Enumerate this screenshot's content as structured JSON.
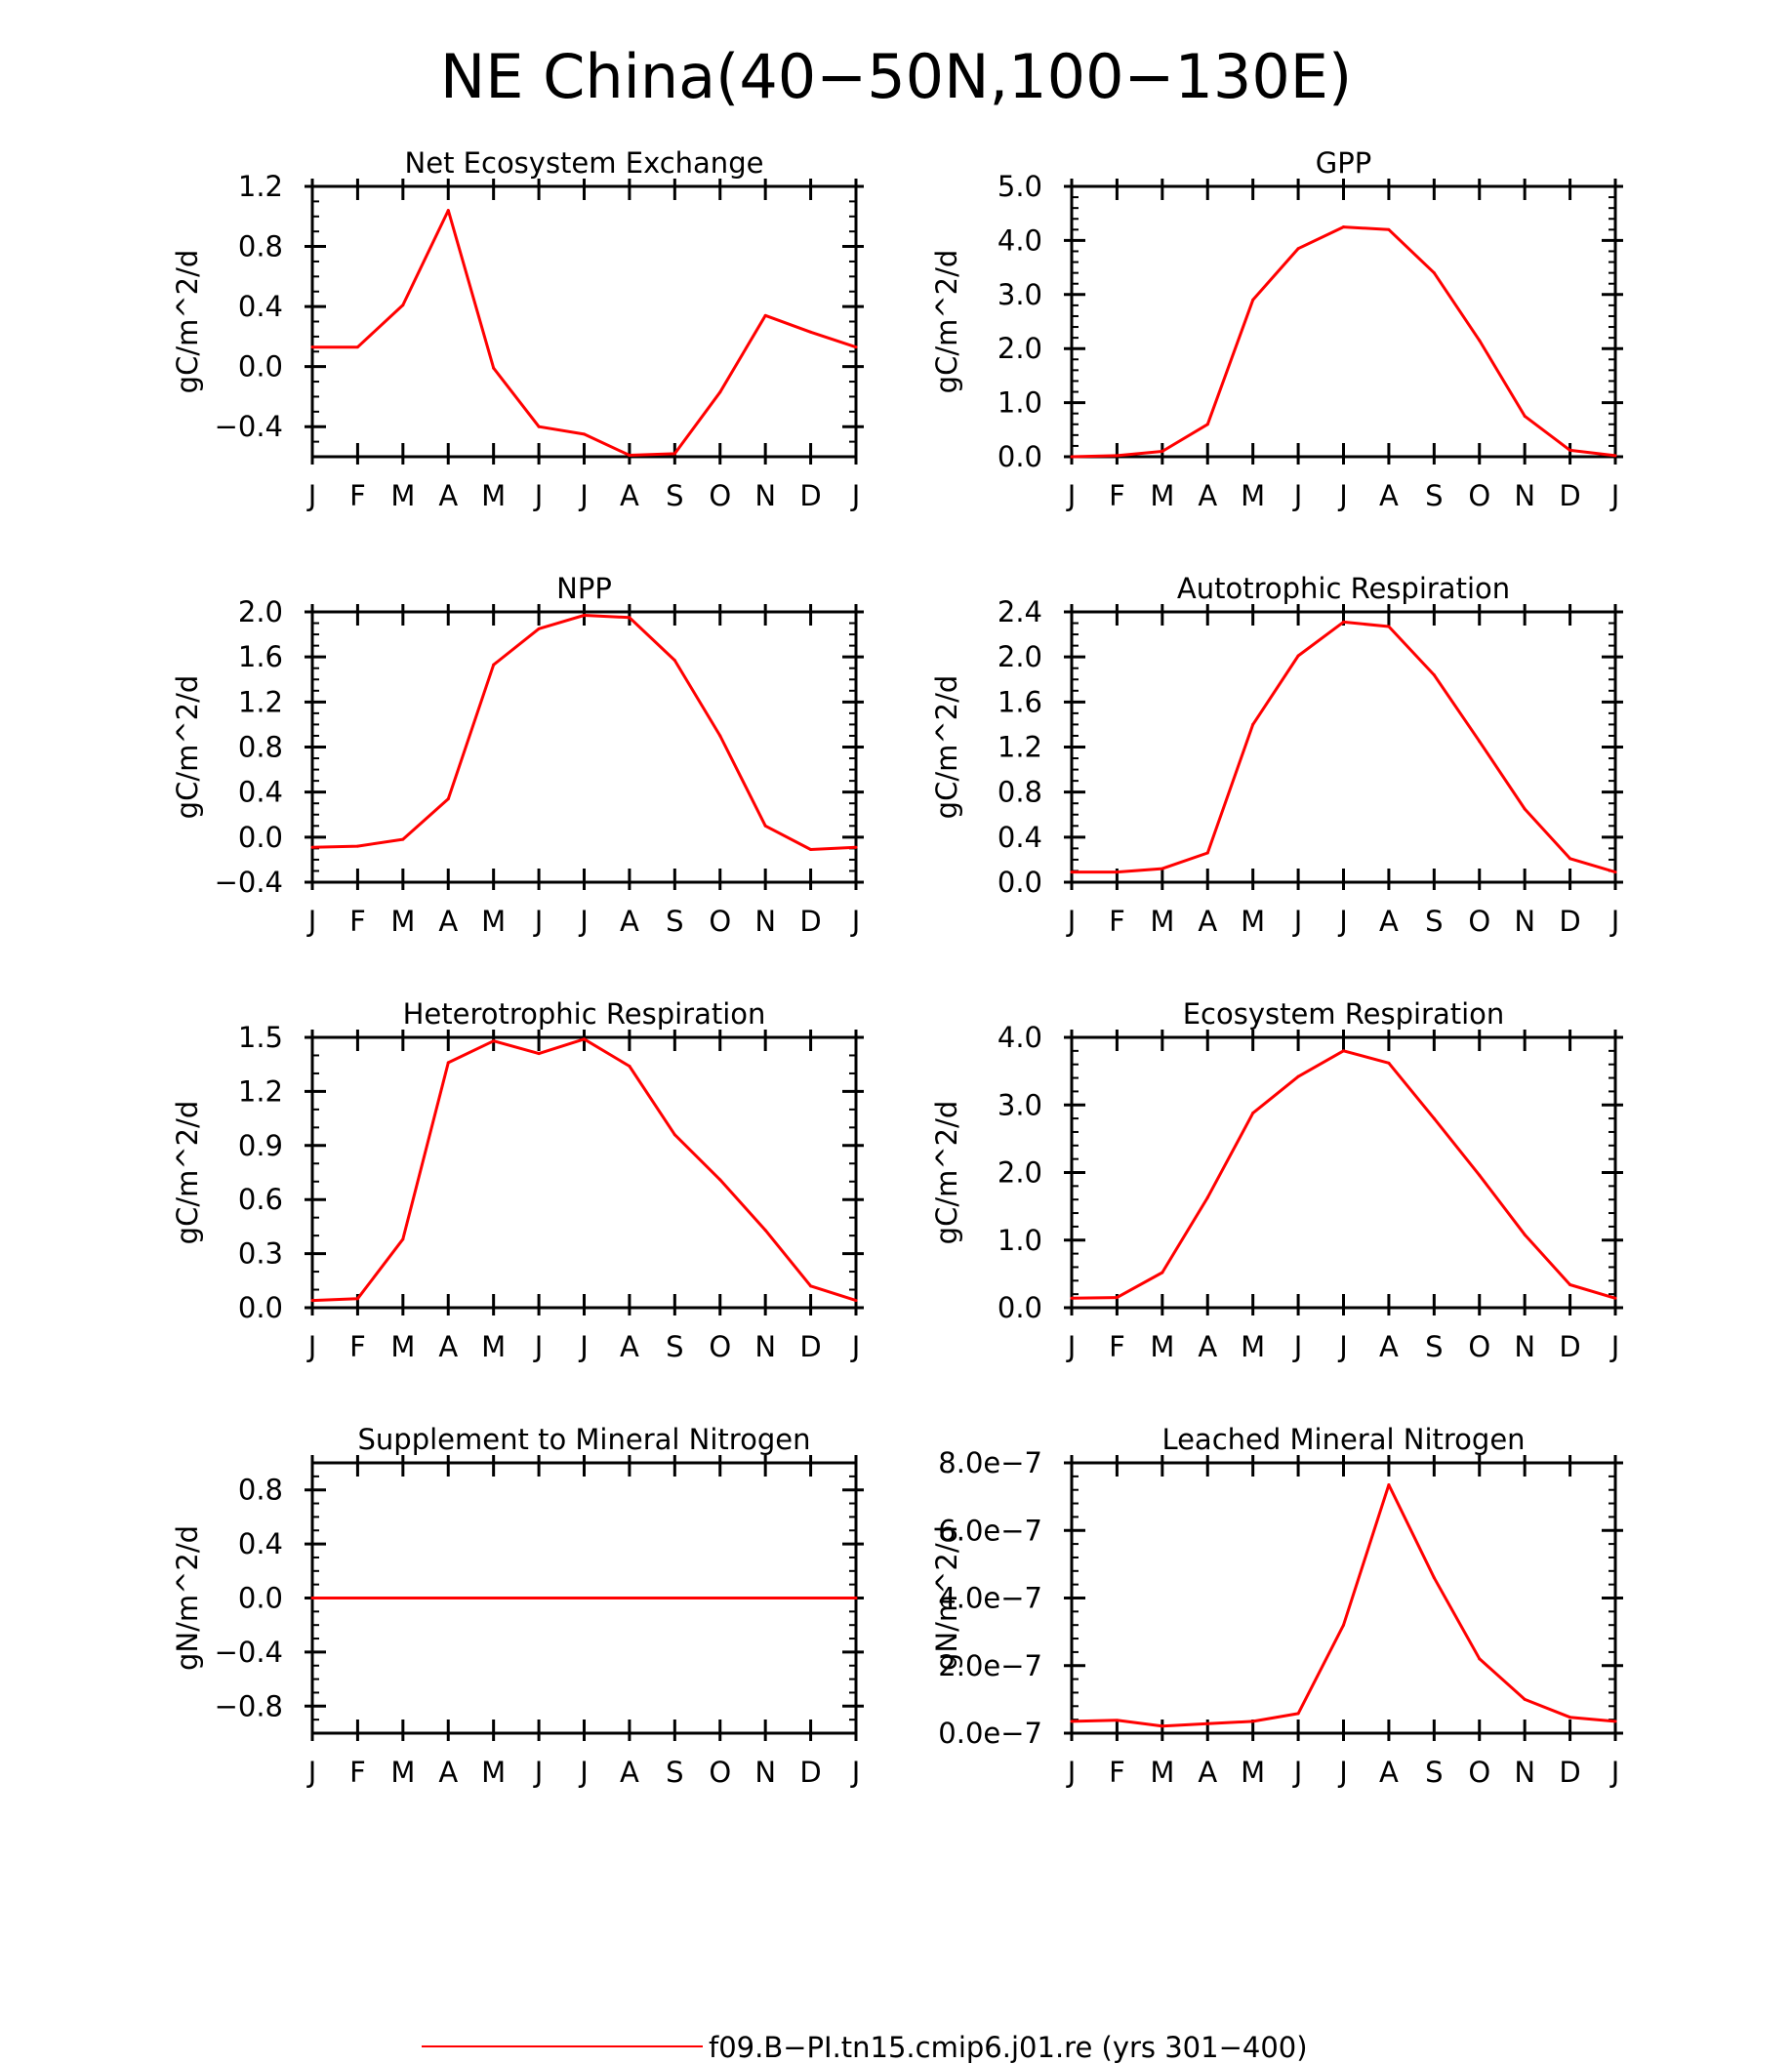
{
  "title": "NE China(40−50N,100−130E)",
  "legend": {
    "label": "f09.B−PI.tn15.cmip6.j01.re (yrs 301−400)",
    "color": "#ff0000"
  },
  "line_color": "#ff0000",
  "chart_data": [
    {
      "type": "line",
      "title": "Net Ecosystem Exchange",
      "xlabel": "",
      "ylabel": "gC/m^2/d",
      "categories": [
        "J",
        "F",
        "M",
        "A",
        "M",
        "J",
        "J",
        "A",
        "S",
        "O",
        "N",
        "D",
        "J"
      ],
      "ylim": [
        -0.6,
        1.2
      ],
      "yticks": [
        -0.4,
        0.0,
        0.4,
        0.8,
        1.2
      ],
      "ytick_labels": [
        "−0.4",
        "0.0",
        "0.4",
        "0.8",
        "1.2"
      ],
      "yminor_step": 0.1,
      "grid": false,
      "series": [
        {
          "values": [
            0.13,
            0.13,
            0.41,
            1.04,
            -0.01,
            -0.4,
            -0.45,
            -0.59,
            -0.58,
            -0.17,
            0.34,
            0.23,
            0.13
          ]
        }
      ]
    },
    {
      "type": "line",
      "title": "GPP",
      "xlabel": "",
      "ylabel": "gC/m^2/d",
      "categories": [
        "J",
        "F",
        "M",
        "A",
        "M",
        "J",
        "J",
        "A",
        "S",
        "O",
        "N",
        "D",
        "J"
      ],
      "ylim": [
        0.0,
        5.0
      ],
      "yticks": [
        0.0,
        1.0,
        2.0,
        3.0,
        4.0,
        5.0
      ],
      "ytick_labels": [
        "0.0",
        "1.0",
        "2.0",
        "3.0",
        "4.0",
        "5.0"
      ],
      "yminor_step": 0.2,
      "grid": false,
      "series": [
        {
          "values": [
            0.0,
            0.02,
            0.1,
            0.6,
            2.9,
            3.85,
            4.25,
            4.2,
            3.4,
            2.15,
            0.75,
            0.12,
            0.02
          ]
        }
      ]
    },
    {
      "type": "line",
      "title": "NPP",
      "xlabel": "",
      "ylabel": "gC/m^2/d",
      "categories": [
        "J",
        "F",
        "M",
        "A",
        "M",
        "J",
        "J",
        "A",
        "S",
        "O",
        "N",
        "D",
        "J"
      ],
      "ylim": [
        -0.4,
        2.0
      ],
      "yticks": [
        -0.4,
        0.0,
        0.4,
        0.8,
        1.2,
        1.6,
        2.0
      ],
      "ytick_labels": [
        "−0.4",
        "0.0",
        "0.4",
        "0.8",
        "1.2",
        "1.6",
        "2.0"
      ],
      "yminor_step": 0.1,
      "grid": false,
      "series": [
        {
          "values": [
            -0.09,
            -0.08,
            -0.02,
            0.34,
            1.53,
            1.85,
            1.97,
            1.95,
            1.57,
            0.9,
            0.1,
            -0.11,
            -0.09
          ]
        }
      ]
    },
    {
      "type": "line",
      "title": "Autotrophic Respiration",
      "xlabel": "",
      "ylabel": "gC/m^2/d",
      "categories": [
        "J",
        "F",
        "M",
        "A",
        "M",
        "J",
        "J",
        "A",
        "S",
        "O",
        "N",
        "D",
        "J"
      ],
      "ylim": [
        0.0,
        2.4
      ],
      "yticks": [
        0.0,
        0.4,
        0.8,
        1.2,
        1.6,
        2.0,
        2.4
      ],
      "ytick_labels": [
        "0.0",
        "0.4",
        "0.8",
        "1.2",
        "1.6",
        "2.0",
        "2.4"
      ],
      "yminor_step": 0.1,
      "grid": false,
      "series": [
        {
          "values": [
            0.09,
            0.09,
            0.12,
            0.26,
            1.4,
            2.01,
            2.31,
            2.27,
            1.84,
            1.25,
            0.65,
            0.21,
            0.09
          ]
        }
      ]
    },
    {
      "type": "line",
      "title": "Heterotrophic Respiration",
      "xlabel": "",
      "ylabel": "gC/m^2/d",
      "categories": [
        "J",
        "F",
        "M",
        "A",
        "M",
        "J",
        "J",
        "A",
        "S",
        "O",
        "N",
        "D",
        "J"
      ],
      "ylim": [
        0.0,
        1.5
      ],
      "yticks": [
        0.0,
        0.3,
        0.6,
        0.9,
        1.2,
        1.5
      ],
      "ytick_labels": [
        "0.0",
        "0.3",
        "0.6",
        "0.9",
        "1.2",
        "1.5"
      ],
      "yminor_step": 0.1,
      "grid": false,
      "series": [
        {
          "values": [
            0.04,
            0.05,
            0.38,
            1.36,
            1.48,
            1.41,
            1.49,
            1.34,
            0.96,
            0.71,
            0.43,
            0.12,
            0.04
          ]
        }
      ]
    },
    {
      "type": "line",
      "title": "Ecosystem Respiration",
      "xlabel": "",
      "ylabel": "gC/m^2/d",
      "categories": [
        "J",
        "F",
        "M",
        "A",
        "M",
        "J",
        "J",
        "A",
        "S",
        "O",
        "N",
        "D",
        "J"
      ],
      "ylim": [
        0.0,
        4.0
      ],
      "yticks": [
        0.0,
        1.0,
        2.0,
        3.0,
        4.0
      ],
      "ytick_labels": [
        "0.0",
        "1.0",
        "2.0",
        "3.0",
        "4.0"
      ],
      "yminor_step": 0.2,
      "grid": false,
      "series": [
        {
          "values": [
            0.14,
            0.15,
            0.52,
            1.63,
            2.88,
            3.42,
            3.8,
            3.62,
            2.8,
            1.96,
            1.08,
            0.34,
            0.14
          ]
        }
      ]
    },
    {
      "type": "line",
      "title": "Supplement to Mineral Nitrogen",
      "xlabel": "",
      "ylabel": "gN/m^2/d",
      "categories": [
        "J",
        "F",
        "M",
        "A",
        "M",
        "J",
        "J",
        "A",
        "S",
        "O",
        "N",
        "D",
        "J"
      ],
      "ylim": [
        -1.0,
        1.0
      ],
      "yticks": [
        -0.8,
        -0.4,
        0.0,
        0.4,
        0.8
      ],
      "ytick_labels": [
        "−0.8",
        "−0.4",
        "0.0",
        "0.4",
        "0.8"
      ],
      "yminor_step": 0.1,
      "grid": false,
      "series": [
        {
          "values": [
            0,
            0,
            0,
            0,
            0,
            0,
            0,
            0,
            0,
            0,
            0,
            0,
            0
          ]
        }
      ]
    },
    {
      "type": "line",
      "title": "Leached Mineral Nitrogen",
      "xlabel": "",
      "ylabel": "gN/m^2/d",
      "categories": [
        "J",
        "F",
        "M",
        "A",
        "M",
        "J",
        "J",
        "A",
        "S",
        "O",
        "N",
        "D",
        "J"
      ],
      "ylim": [
        0.0,
        8e-07
      ],
      "yticks": [
        0.0,
        2e-07,
        4e-07,
        6e-07,
        8e-07
      ],
      "ytick_labels": [
        "0.0e−7",
        "2.0e−7",
        "4.0e−7",
        "6.0e−7",
        "8.0e−7"
      ],
      "yminor_step": 4e-08,
      "grid": false,
      "series": [
        {
          "values": [
            3.5e-08,
            3.8e-08,
            2.1e-08,
            2.8e-08,
            3.5e-08,
            5.8e-08,
            3.2e-07,
            7.35e-07,
            4.6e-07,
            2.2e-07,
            1e-07,
            4.7e-08,
            3.5e-08
          ]
        }
      ]
    }
  ]
}
